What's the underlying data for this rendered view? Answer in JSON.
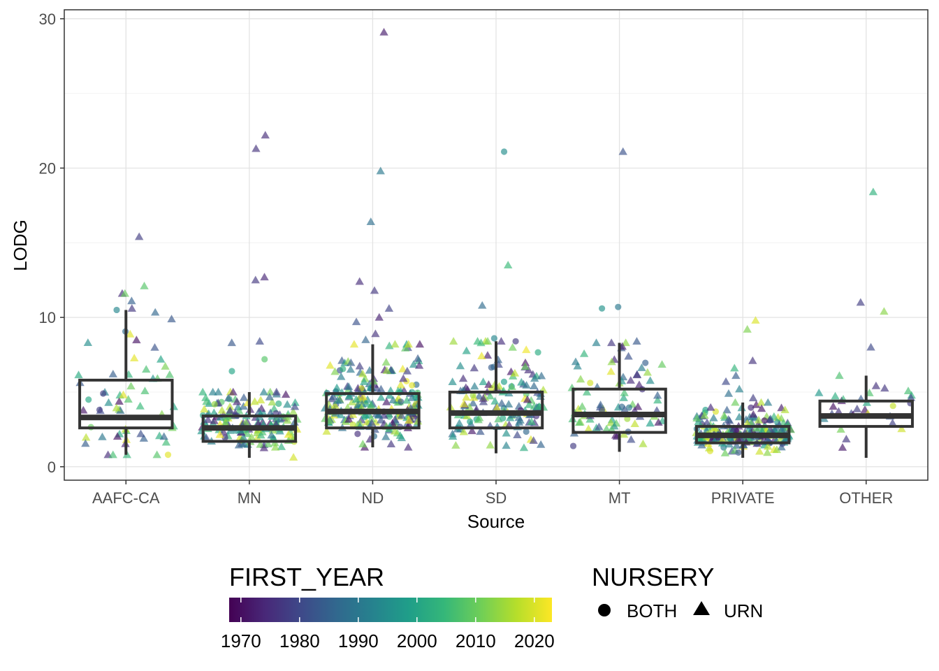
{
  "chart_data": {
    "type": "boxplot_jitter",
    "xlabel": "Source",
    "ylabel": "LODG",
    "categories": [
      "AAFC-CA",
      "MN",
      "ND",
      "SD",
      "MT",
      "PRIVATE",
      "OTHER"
    ],
    "ylim": [
      -0.9,
      30.6
    ],
    "yticks": [
      0,
      10,
      20,
      30
    ],
    "grid": true,
    "boxes": [
      {
        "category": "AAFC-CA",
        "q1": 2.6,
        "median": 3.3,
        "q3": 5.8,
        "whisker_low": 0.8,
        "whisker_high": 10.5,
        "n": 60,
        "spread": 2.5
      },
      {
        "category": "MN",
        "q1": 1.7,
        "median": 2.6,
        "q3": 3.4,
        "whisker_low": 0.6,
        "whisker_high": 5.0,
        "n": 170,
        "spread": 1.0
      },
      {
        "category": "ND",
        "q1": 2.6,
        "median": 3.7,
        "q3": 4.9,
        "whisker_low": 1.3,
        "whisker_high": 8.2,
        "n": 230,
        "spread": 1.3
      },
      {
        "category": "SD",
        "q1": 2.6,
        "median": 3.6,
        "q3": 5.0,
        "whisker_low": 0.9,
        "whisker_high": 8.4,
        "n": 150,
        "spread": 1.3
      },
      {
        "category": "MT",
        "q1": 2.3,
        "median": 3.5,
        "q3": 5.2,
        "whisker_low": 1.0,
        "whisker_high": 8.3,
        "n": 80,
        "spread": 1.6
      },
      {
        "category": "PRIVATE",
        "q1": 1.6,
        "median": 2.1,
        "q3": 2.7,
        "whisker_low": 0.6,
        "whisker_high": 4.3,
        "n": 230,
        "spread": 0.6
      },
      {
        "category": "OTHER",
        "q1": 2.7,
        "median": 3.4,
        "q3": 4.4,
        "whisker_low": 0.6,
        "whisker_high": 6.1,
        "n": 30,
        "spread": 1.2
      }
    ],
    "outliers": [
      {
        "category": "AAFC-CA",
        "y": 15.4,
        "year": 1978,
        "nursery": "URN"
      },
      {
        "category": "AAFC-CA",
        "y": 12.1,
        "year": 2008,
        "nursery": "URN"
      },
      {
        "category": "AAFC-CA",
        "y": 11.6,
        "year": 1975,
        "nursery": "URN"
      },
      {
        "category": "AAFC-CA",
        "y": 11.6,
        "year": 2010,
        "nursery": "URN"
      },
      {
        "category": "AAFC-CA",
        "y": 11.1,
        "year": 1985,
        "nursery": "URN"
      },
      {
        "category": "AAFC-CA",
        "y": 10.6,
        "year": 1977,
        "nursery": "URN"
      },
      {
        "category": "MN",
        "y": 22.2,
        "year": 1975,
        "nursery": "URN"
      },
      {
        "category": "MN",
        "y": 21.3,
        "year": 1976,
        "nursery": "URN"
      },
      {
        "category": "MN",
        "y": 12.7,
        "year": 1974,
        "nursery": "URN"
      },
      {
        "category": "MN",
        "y": 12.5,
        "year": 1977,
        "nursery": "URN"
      },
      {
        "category": "MN",
        "y": 8.4,
        "year": 1980,
        "nursery": "URN"
      },
      {
        "category": "MN",
        "y": 8.3,
        "year": 1983,
        "nursery": "URN"
      },
      {
        "category": "MN",
        "y": 7.2,
        "year": 2008,
        "nursery": "BOTH"
      },
      {
        "category": "MN",
        "y": 6.4,
        "year": 2000,
        "nursery": "BOTH"
      },
      {
        "category": "ND",
        "y": 29.1,
        "year": 1972,
        "nursery": "URN"
      },
      {
        "category": "ND",
        "y": 19.8,
        "year": 1990,
        "nursery": "URN"
      },
      {
        "category": "ND",
        "y": 16.4,
        "year": 1988,
        "nursery": "URN"
      },
      {
        "category": "ND",
        "y": 12.4,
        "year": 1975,
        "nursery": "URN"
      },
      {
        "category": "ND",
        "y": 11.8,
        "year": 1977,
        "nursery": "URN"
      },
      {
        "category": "ND",
        "y": 10.6,
        "year": 1979,
        "nursery": "URN"
      },
      {
        "category": "ND",
        "y": 10.0,
        "year": 1973,
        "nursery": "URN"
      },
      {
        "category": "ND",
        "y": 9.7,
        "year": 1982,
        "nursery": "URN"
      },
      {
        "category": "ND",
        "y": 8.9,
        "year": 1976,
        "nursery": "URN"
      },
      {
        "category": "ND",
        "y": 8.5,
        "year": 1986,
        "nursery": "URN"
      },
      {
        "category": "SD",
        "y": 21.1,
        "year": 1995,
        "nursery": "BOTH"
      },
      {
        "category": "SD",
        "y": 13.5,
        "year": 2005,
        "nursery": "URN"
      },
      {
        "category": "SD",
        "y": 10.8,
        "year": 1987,
        "nursery": "URN"
      },
      {
        "category": "SD",
        "y": 8.6,
        "year": 1993,
        "nursery": "BOTH"
      },
      {
        "category": "MT",
        "y": 21.1,
        "year": 1982,
        "nursery": "URN"
      },
      {
        "category": "MT",
        "y": 10.7,
        "year": 1990,
        "nursery": "BOTH"
      },
      {
        "category": "MT",
        "y": 10.6,
        "year": 1996,
        "nursery": "BOTH"
      },
      {
        "category": "MT",
        "y": 8.4,
        "year": 1983,
        "nursery": "URN"
      },
      {
        "category": "PRIVATE",
        "y": 9.8,
        "year": 2020,
        "nursery": "URN"
      },
      {
        "category": "PRIVATE",
        "y": 9.2,
        "year": 2012,
        "nursery": "URN"
      },
      {
        "category": "PRIVATE",
        "y": 7.1,
        "year": 1976,
        "nursery": "URN"
      },
      {
        "category": "PRIVATE",
        "y": 6.6,
        "year": 2004,
        "nursery": "URN"
      },
      {
        "category": "PRIVATE",
        "y": 6.1,
        "year": 1984,
        "nursery": "URN"
      },
      {
        "category": "PRIVATE",
        "y": 5.7,
        "year": 1980,
        "nursery": "URN"
      },
      {
        "category": "PRIVATE",
        "y": 5.2,
        "year": 1992,
        "nursery": "URN"
      },
      {
        "category": "PRIVATE",
        "y": 4.9,
        "year": 1988,
        "nursery": "URN"
      },
      {
        "category": "PRIVATE",
        "y": 4.6,
        "year": 1978,
        "nursery": "URN"
      },
      {
        "category": "OTHER",
        "y": 18.4,
        "year": 2003,
        "nursery": "URN"
      },
      {
        "category": "OTHER",
        "y": 11.0,
        "year": 1978,
        "nursery": "URN"
      },
      {
        "category": "OTHER",
        "y": 10.4,
        "year": 2013,
        "nursery": "URN"
      },
      {
        "category": "OTHER",
        "y": 8.0,
        "year": 1980,
        "nursery": "URN"
      }
    ],
    "legend": {
      "color": {
        "title": "FIRST_YEAR",
        "range": [
          1968,
          2023
        ],
        "ticks": [
          1970,
          1980,
          1990,
          2000,
          2010,
          2020
        ],
        "colormap": [
          "#440154",
          "#482878",
          "#3e4989",
          "#31688e",
          "#26828e",
          "#1f9e89",
          "#35b779",
          "#6ece58",
          "#b5de2b",
          "#fde725"
        ]
      },
      "shape": {
        "title": "NURSERY",
        "entries": [
          {
            "label": "BOTH",
            "shape": "circle"
          },
          {
            "label": "URN",
            "shape": "triangle"
          }
        ]
      },
      "position": "bottom"
    },
    "point_opacity": 0.65,
    "box_color": "#333333"
  }
}
